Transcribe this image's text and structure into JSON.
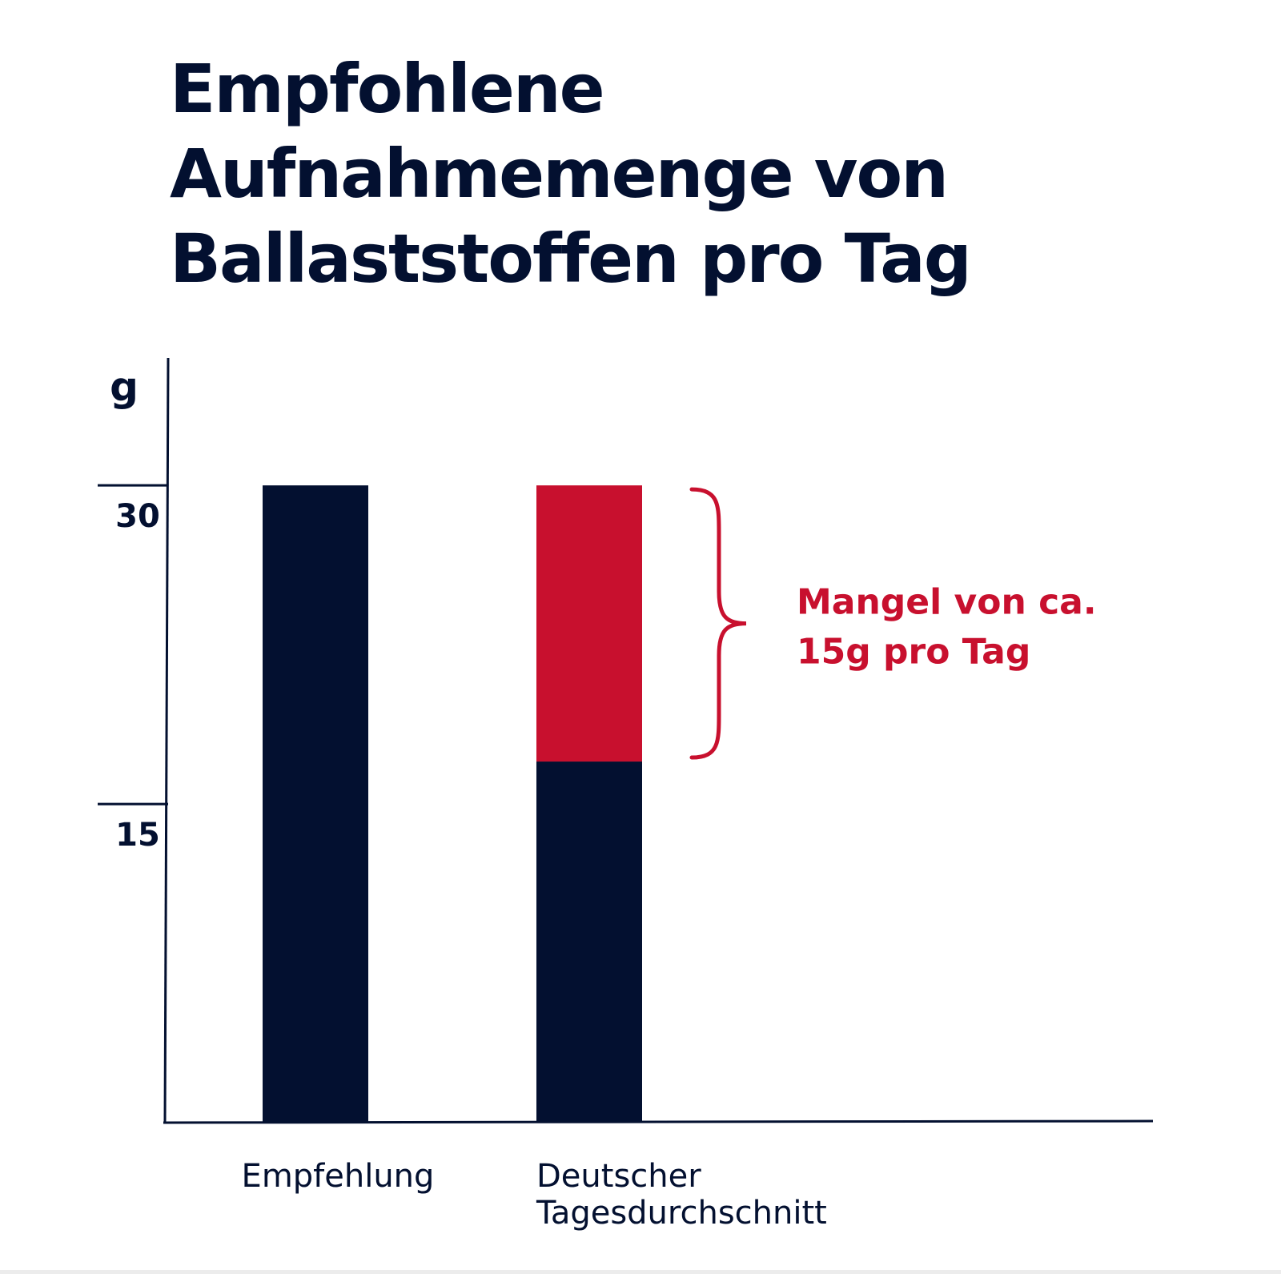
{
  "title_lines": [
    "Empfohlene",
    "Aufnahmemenge von",
    "Ballaststoffen pro Tag"
  ],
  "colors": {
    "navy": "#031030",
    "red": "#c8102e",
    "background": "#ffffff"
  },
  "chart_data": {
    "type": "bar",
    "stacked": true,
    "title": "Empfohlene Aufnahmemenge von Ballaststoffen pro Tag",
    "ylabel": "g",
    "xlabel": "",
    "categories": [
      "Empfehlung",
      "Deutscher Tagesdurchschnitt"
    ],
    "category_label_lines": [
      [
        "Empfehlung"
      ],
      [
        "Deutscher",
        "Tagesdurchschnitt"
      ]
    ],
    "series": [
      {
        "values": [
          30,
          17
        ],
        "color": "#031030"
      },
      {
        "values": [
          0,
          13
        ],
        "color": "#c8102e"
      }
    ],
    "ylim": [
      0,
      36
    ],
    "yticks": [
      15,
      30
    ],
    "ytick_labels": [
      "15",
      "30"
    ],
    "grid": false,
    "legend": "none",
    "annotation": {
      "text_lines": [
        "Mangel von ca.",
        "15g pro Tag"
      ],
      "category_index": 1,
      "from": 17,
      "to": 30,
      "color": "#c8102e"
    }
  }
}
